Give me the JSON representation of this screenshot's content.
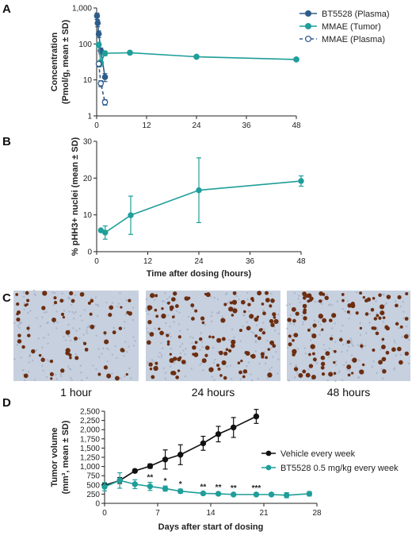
{
  "panels": {
    "A": "A",
    "B": "B",
    "C": "C",
    "D": "D"
  },
  "colors": {
    "navy": "#2f5d8a",
    "teal": "#1f9e9a",
    "black": "#111111",
    "tissue_bg": "#c7d0de",
    "stain": "#6b2e12"
  },
  "micrographs": {
    "captions": [
      "1 hour",
      "24 hours",
      "48 hours"
    ],
    "relative_density": [
      0.35,
      0.7,
      0.6
    ]
  },
  "chart_data": [
    {
      "id": "A",
      "type": "line",
      "ylabel_lines": [
        "Concentration",
        "(Pmol/g, mean ± SD)"
      ],
      "xlabel": "",
      "yscale": "log",
      "ylim": [
        1,
        1000
      ],
      "xlim": [
        0,
        48
      ],
      "x_ticks": [
        0,
        12,
        24,
        36,
        48
      ],
      "y_ticks": [
        1,
        10,
        100,
        1000
      ],
      "y_tick_labels": [
        "1",
        "10",
        "100",
        "1,000"
      ],
      "legend_position": "top-right",
      "series": [
        {
          "name": "BT5528 (Plasma)",
          "color": "#2f5d8a",
          "marker": "filled-circle",
          "line": "solid",
          "x": [
            0.08,
            0.25,
            0.5,
            1,
            2
          ],
          "y": [
            600,
            380,
            190,
            65,
            12
          ],
          "err": [
            120,
            80,
            40,
            12,
            3
          ]
        },
        {
          "name": "MMAE (Tumor)",
          "color": "#1f9e9a",
          "marker": "filled-circle",
          "line": "solid",
          "x": [
            0.5,
            1,
            2,
            8,
            24,
            48
          ],
          "y": [
            95,
            30,
            55,
            57,
            44,
            37
          ],
          "err": [
            15,
            6,
            8,
            4,
            3,
            3
          ]
        },
        {
          "name": "MMAE (Plasma)",
          "color": "#2f5d8a",
          "marker": "open-circle",
          "line": "dashed",
          "x": [
            0.5,
            1,
            2
          ],
          "y": [
            28,
            8,
            2.4
          ],
          "err": [
            5,
            1.5,
            0.4
          ]
        }
      ]
    },
    {
      "id": "B",
      "type": "line",
      "xlabel": "Time after dosing (hours)",
      "ylabel": "% pHH3+ nuclei (mean ± SD)",
      "xlim": [
        0,
        48
      ],
      "ylim": [
        0,
        30
      ],
      "x_ticks": [
        0,
        12,
        24,
        36,
        48
      ],
      "y_ticks": [
        0,
        10,
        20,
        30
      ],
      "series": [
        {
          "name": "",
          "color": "#1f9e9a",
          "x": [
            1,
            2,
            8,
            24,
            48
          ],
          "y": [
            5.8,
            5.2,
            9.9,
            16.7,
            19.2
          ],
          "err": [
            0.4,
            1.8,
            5.2,
            8.8,
            1.4
          ]
        }
      ]
    },
    {
      "id": "D",
      "type": "line",
      "xlabel": "Days after start of dosing",
      "ylabel_lines": [
        "Tumor volume",
        "(mm³, mean ± SD)"
      ],
      "xlim": [
        0,
        28
      ],
      "ylim": [
        0,
        2500
      ],
      "x_ticks": [
        0,
        7,
        14,
        21,
        28
      ],
      "y_ticks": [
        0,
        250,
        500,
        750,
        1000,
        1250,
        1500,
        1750,
        2000,
        2250,
        2500
      ],
      "y_tick_labels": [
        "0",
        "250",
        "500",
        "750",
        "1,000",
        "1,250",
        "1,500",
        "1,750",
        "2,000",
        "2,250",
        "2,500"
      ],
      "legend_position": "center-right",
      "series": [
        {
          "name": "Vehicle every week",
          "color": "#111111",
          "x": [
            0,
            2,
            4,
            6,
            8,
            10,
            13,
            15,
            17,
            20
          ],
          "y": [
            490,
            620,
            880,
            1010,
            1190,
            1320,
            1630,
            1880,
            2060,
            2360
          ],
          "err": [
            70,
            80,
            40,
            60,
            260,
            270,
            190,
            210,
            270,
            190
          ]
        },
        {
          "name": "BT5528 0.5 mg/kg every week",
          "color": "#1f9e9a",
          "x": [
            0,
            2,
            4,
            6,
            8,
            10,
            13,
            15,
            17,
            20,
            22,
            24,
            27
          ],
          "y": [
            450,
            620,
            520,
            460,
            400,
            330,
            270,
            260,
            240,
            240,
            240,
            220,
            260
          ],
          "err": [
            110,
            210,
            120,
            110,
            70,
            55,
            40,
            40,
            40,
            40,
            40,
            70,
            60
          ]
        }
      ],
      "significance": [
        {
          "x": 6,
          "label": "**"
        },
        {
          "x": 8,
          "label": "*"
        },
        {
          "x": 10,
          "label": "*"
        },
        {
          "x": 13,
          "label": "**"
        },
        {
          "x": 15,
          "label": "**"
        },
        {
          "x": 17,
          "label": "**"
        },
        {
          "x": 20,
          "label": "***"
        }
      ]
    }
  ]
}
